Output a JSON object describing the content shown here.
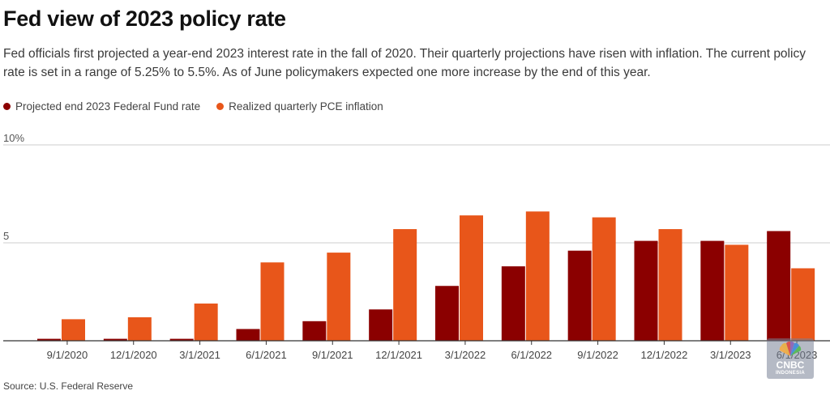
{
  "title": "Fed view of 2023 policy rate",
  "subtitle": "Fed officials first projected a year-end 2023 interest rate in the fall of 2020. Their quarterly projections have risen with inflation. The current policy rate is set in a range of 5.25% to 5.5%. As of June policymakers expected one more increase by the end of this year.",
  "source": "Source: U.S. Federal Reserve",
  "watermark": {
    "main": "CNBC",
    "sub": "INDONESIA"
  },
  "colors": {
    "fed_rate": "#8b0000",
    "pce": "#e8561a",
    "grid": "#cccccc",
    "axis": "#333333"
  },
  "chart_data": {
    "type": "bar",
    "title": "Fed view of 2023 policy rate",
    "xlabel": "",
    "ylabel": "",
    "ylim": [
      0,
      10
    ],
    "yticks": [
      {
        "value": 5,
        "label": "5"
      },
      {
        "value": 10,
        "label": "10%"
      }
    ],
    "grid": true,
    "legend_position": "top-left",
    "categories": [
      "9/1/2020",
      "12/1/2020",
      "3/1/2021",
      "6/1/2021",
      "9/1/2021",
      "12/1/2021",
      "3/1/2022",
      "6/1/2022",
      "9/1/2022",
      "12/1/2022",
      "3/1/2023",
      "6/1/2023"
    ],
    "series": [
      {
        "name": "Projected end 2023 Federal Fund rate",
        "color": "#8b0000",
        "values": [
          0.1,
          0.1,
          0.1,
          0.6,
          1.0,
          1.6,
          2.8,
          3.8,
          4.6,
          5.1,
          5.1,
          5.6
        ]
      },
      {
        "name": "Realized quarterly PCE inflation",
        "color": "#e8561a",
        "values": [
          1.1,
          1.2,
          1.9,
          4.0,
          4.5,
          5.7,
          6.4,
          6.6,
          6.3,
          5.7,
          4.9,
          3.7
        ]
      }
    ]
  }
}
